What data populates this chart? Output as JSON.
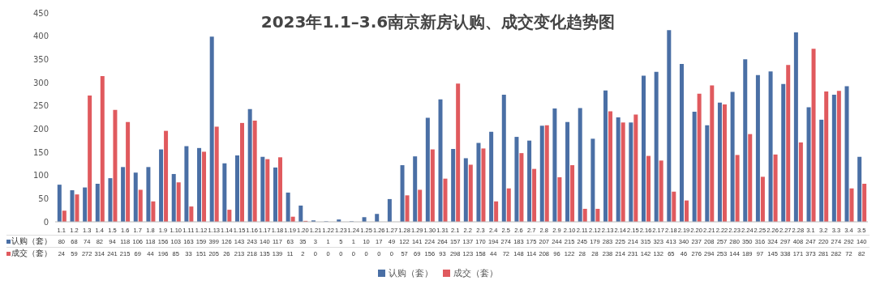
{
  "chart_data": {
    "type": "bar",
    "title": "2023年1.1–3.6南京新房认购、成交变化趋势图",
    "categories": [
      "1.1",
      "1.2",
      "1.3",
      "1.4",
      "1.5",
      "1.6",
      "1.7",
      "1.8",
      "1.9",
      "1.10",
      "1.11",
      "1.12",
      "1.13",
      "1.14",
      "1.15",
      "1.16",
      "1.17",
      "1.18",
      "1.19",
      "1.20",
      "1.21",
      "1.22",
      "1.23",
      "1.24",
      "1.25",
      "1.26",
      "1.27",
      "1.28",
      "1.29",
      "1.30",
      "1.31",
      "2.1",
      "2.2",
      "2.3",
      "2.4",
      "2.5",
      "2.6",
      "2.7",
      "2.8",
      "2.9",
      "2.10",
      "2.11",
      "2.12",
      "2.13",
      "2.14",
      "2.15",
      "2.16",
      "2.17",
      "2.18",
      "2.19",
      "2.20",
      "2.21",
      "2.22",
      "2.23",
      "2.24",
      "2.25",
      "2.26",
      "2.27",
      "2.28",
      "3.1",
      "3.2",
      "3.3",
      "3.4",
      "3.5"
    ],
    "series": [
      {
        "name": "认购（套）",
        "color": "#4a6fa5",
        "values": [
          80,
          68,
          74,
          82,
          94,
          118,
          106,
          118,
          156,
          103,
          163,
          159,
          399,
          126,
          143,
          243,
          140,
          117,
          63,
          35,
          3,
          1,
          5,
          1,
          10,
          17,
          49,
          122,
          141,
          224,
          264,
          157,
          137,
          170,
          194,
          274,
          183,
          175,
          207,
          244,
          215,
          245,
          179,
          283,
          225,
          214,
          315,
          323,
          413,
          340,
          237,
          208,
          257,
          280,
          350,
          316,
          324,
          297,
          408,
          247,
          220,
          274,
          292,
          140
        ]
      },
      {
        "name": "成交（套）",
        "color": "#e05a5e",
        "values": [
          24,
          59,
          272,
          314,
          241,
          215,
          69,
          44,
          196,
          85,
          33,
          151,
          205,
          26,
          213,
          218,
          135,
          139,
          11,
          2,
          0,
          0,
          0,
          0,
          0,
          0,
          0,
          57,
          69,
          156,
          93,
          298,
          123,
          158,
          44,
          72,
          148,
          114,
          208,
          96,
          122,
          28,
          28,
          238,
          214,
          231,
          142,
          132,
          65,
          46,
          276,
          294,
          253,
          144,
          189,
          97,
          145,
          338,
          171,
          373,
          281,
          282,
          72,
          82
        ]
      }
    ],
    "ylim": [
      0,
      450
    ],
    "yticks": [
      0,
      50,
      100,
      150,
      200,
      250,
      300,
      350,
      400,
      450
    ],
    "data_labels": true,
    "legend": "bottom"
  }
}
